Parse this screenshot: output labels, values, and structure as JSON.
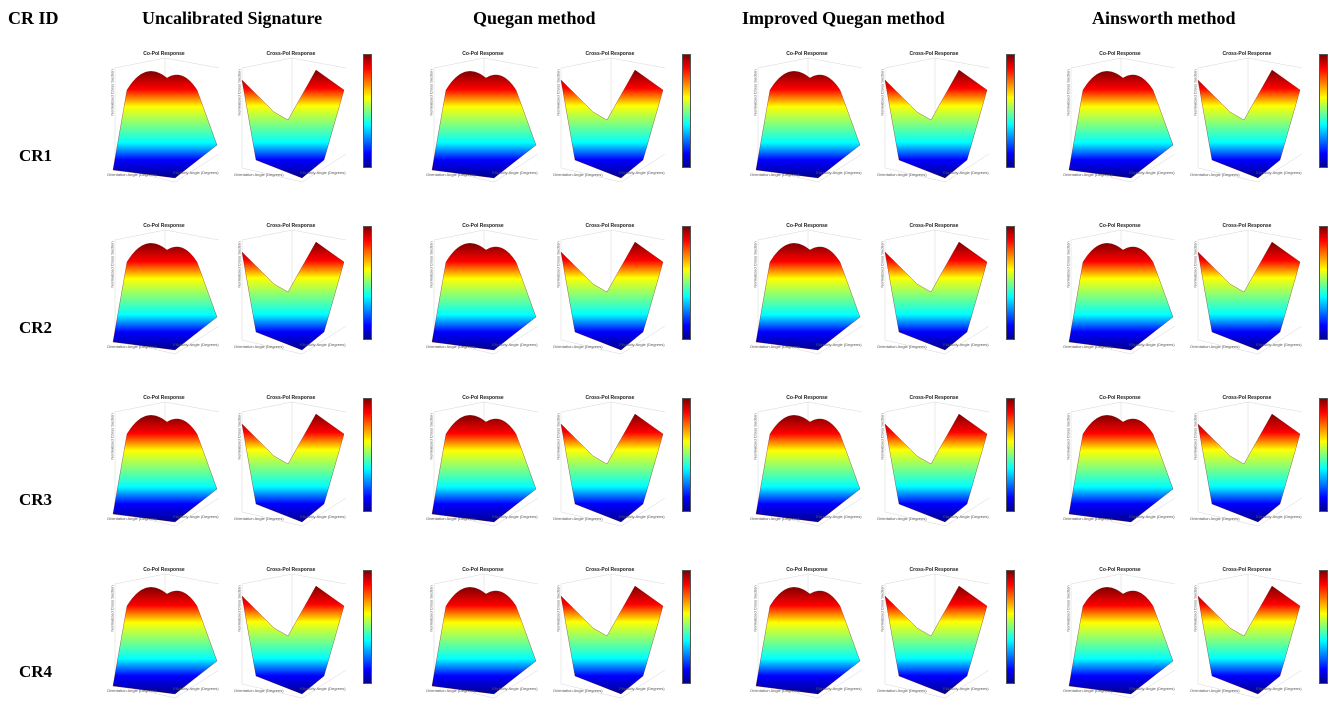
{
  "header": {
    "cr_id": "CR ID",
    "columns": [
      "Uncalibrated Signature",
      "Quegan method",
      "Improved Quegan method",
      "Ainsworth method"
    ]
  },
  "rows": [
    "CR1",
    "CR2",
    "CR3",
    "CR4"
  ],
  "plot_labels": {
    "co_title": "Co-Pol Response",
    "cross_title": "Cross-Pol Response",
    "xlabel": "Orientation Angle (Degrees)",
    "ylabel": "Ellipticity Angle (Degrees)",
    "co_zlabel": "Normalized Cross Section",
    "cross_zlabel": "Normalized Cross Section"
  },
  "colormap": [
    "#00008f",
    "#0000ff",
    "#00ffff",
    "#7fff7f",
    "#ffff00",
    "#ff0000",
    "#800000"
  ]
}
